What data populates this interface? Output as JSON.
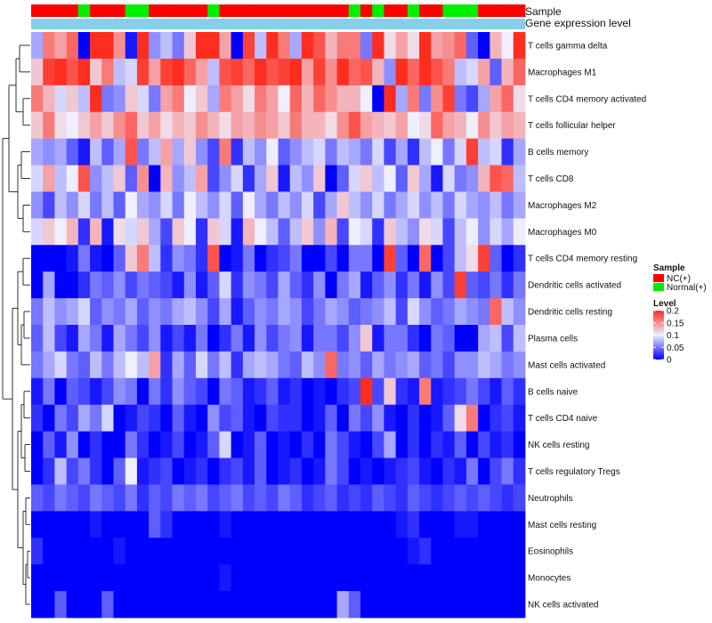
{
  "chart_data": {
    "type": "heatmap",
    "title": "",
    "annotations": {
      "sample_label": "Sample",
      "expression_label": "Gene expression level",
      "sample_groups": [
        "NC(+)",
        "NC(+)",
        "NC(+)",
        "NC(+)",
        "Normal(+)",
        "NC(+)",
        "NC(+)",
        "NC(+)",
        "Normal(+)",
        "Normal(+)",
        "NC(+)",
        "NC(+)",
        "NC(+)",
        "NC(+)",
        "NC(+)",
        "Normal(+)",
        "NC(+)",
        "NC(+)",
        "NC(+)",
        "NC(+)",
        "NC(+)",
        "NC(+)",
        "NC(+)",
        "NC(+)",
        "NC(+)",
        "NC(+)",
        "NC(+)",
        "Normal(+)",
        "NC(+)",
        "Normal(+)",
        "NC(+)",
        "NC(+)",
        "Normal(+)",
        "NC(+)",
        "NC(+)",
        "Normal(+)",
        "Normal(+)",
        "Normal(+)",
        "NC(+)",
        "NC(+)",
        "NC(+)",
        "NC(+)"
      ]
    },
    "rows": [
      "T cells gamma delta",
      "Macrophages M1",
      "T cells CD4 memory activated",
      "T cells follicular helper",
      "B cells memory",
      "T cells CD8",
      "Macrophages M2",
      "Macrophages M0",
      "T cells CD4 memory resting",
      "Dendritic cells activated",
      "Dendritic cells resting",
      "Plasma cells",
      "Mast cells activated",
      "B cells naive",
      "T cells CD4 naive",
      "NK cells resting",
      "T cells regulatory  Tregs",
      "Neutrophils",
      "Mast cells resting",
      "Eosinophils",
      "Monocytes",
      "NK cells activated"
    ],
    "values": [
      [
        0.07,
        0.16,
        0.14,
        0.17,
        0.0,
        0.2,
        0.2,
        0.15,
        0.01,
        0.2,
        0.06,
        0.08,
        0.05,
        0.12,
        0.2,
        0.2,
        0.14,
        0.0,
        0.19,
        0.08,
        0.2,
        0.16,
        0.07,
        0.2,
        0.18,
        0.13,
        0.16,
        0.16,
        0.05,
        0.2,
        0.11,
        0.14,
        0.11,
        0.2,
        0.14,
        0.15,
        0.17,
        0.04,
        0.0,
        0.13,
        0.1,
        0.2
      ],
      [
        0.12,
        0.19,
        0.2,
        0.18,
        0.2,
        0.12,
        0.16,
        0.08,
        0.09,
        0.19,
        0.14,
        0.19,
        0.2,
        0.17,
        0.14,
        0.08,
        0.18,
        0.19,
        0.17,
        0.2,
        0.18,
        0.19,
        0.2,
        0.14,
        0.19,
        0.15,
        0.2,
        0.17,
        0.18,
        0.13,
        0.06,
        0.2,
        0.17,
        0.2,
        0.18,
        0.16,
        0.08,
        0.09,
        0.14,
        0.04,
        0.13,
        0.17
      ],
      [
        0.16,
        0.13,
        0.09,
        0.12,
        0.08,
        0.2,
        0.05,
        0.06,
        0.12,
        0.09,
        0.05,
        0.14,
        0.16,
        0.1,
        0.12,
        0.07,
        0.16,
        0.14,
        0.11,
        0.16,
        0.14,
        0.1,
        0.17,
        0.13,
        0.17,
        0.15,
        0.13,
        0.13,
        0.1,
        0.0,
        0.2,
        0.07,
        0.16,
        0.05,
        0.15,
        0.19,
        0.05,
        0.03,
        0.07,
        0.14,
        0.17,
        0.11
      ],
      [
        0.12,
        0.16,
        0.11,
        0.1,
        0.12,
        0.14,
        0.12,
        0.15,
        0.17,
        0.12,
        0.14,
        0.11,
        0.13,
        0.12,
        0.15,
        0.13,
        0.11,
        0.14,
        0.13,
        0.15,
        0.14,
        0.12,
        0.16,
        0.13,
        0.13,
        0.11,
        0.15,
        0.18,
        0.14,
        0.13,
        0.12,
        0.14,
        0.1,
        0.11,
        0.17,
        0.14,
        0.13,
        0.1,
        0.15,
        0.12,
        0.14,
        0.13
      ],
      [
        0.07,
        0.06,
        0.07,
        0.04,
        0.01,
        0.08,
        0.04,
        0.07,
        0.18,
        0.05,
        0.08,
        0.14,
        0.07,
        0.12,
        0.06,
        0.03,
        0.16,
        0.02,
        0.08,
        0.06,
        0.1,
        0.04,
        0.06,
        0.08,
        0.09,
        0.05,
        0.08,
        0.07,
        0.05,
        0.09,
        0.03,
        0.07,
        0.02,
        0.08,
        0.1,
        0.05,
        0.09,
        0.19,
        0.08,
        0.09,
        0.02,
        0.07
      ],
      [
        0.09,
        0.14,
        0.08,
        0.1,
        0.18,
        0.06,
        0.08,
        0.12,
        0.04,
        0.15,
        0.0,
        0.13,
        0.06,
        0.08,
        0.14,
        0.03,
        0.06,
        0.09,
        0.02,
        0.07,
        0.12,
        0.01,
        0.08,
        0.06,
        0.12,
        0.0,
        0.04,
        0.09,
        0.12,
        0.08,
        0.1,
        0.04,
        0.12,
        0.07,
        0.01,
        0.09,
        0.05,
        0.06,
        0.13,
        0.18,
        0.17,
        0.08
      ],
      [
        0.06,
        0.03,
        0.08,
        0.06,
        0.09,
        0.05,
        0.08,
        0.04,
        0.1,
        0.07,
        0.06,
        0.09,
        0.05,
        0.1,
        0.08,
        0.06,
        0.09,
        0.04,
        0.1,
        0.07,
        0.05,
        0.08,
        0.06,
        0.09,
        0.03,
        0.07,
        0.12,
        0.08,
        0.06,
        0.09,
        0.05,
        0.07,
        0.09,
        0.06,
        0.08,
        0.05,
        0.09,
        0.07,
        0.06,
        0.08,
        0.05,
        0.07
      ],
      [
        0.09,
        0.12,
        0.1,
        0.13,
        0.02,
        0.13,
        0.01,
        0.11,
        0.09,
        0.12,
        0.07,
        0.03,
        0.12,
        0.1,
        0.02,
        0.12,
        0.09,
        0.01,
        0.13,
        0.1,
        0.08,
        0.04,
        0.08,
        0.12,
        0.06,
        0.13,
        0.03,
        0.1,
        0.09,
        0.02,
        0.12,
        0.08,
        0.06,
        0.11,
        0.09,
        0.03,
        0.08,
        0.1,
        0.06,
        0.09,
        0.07,
        0.1
      ],
      [
        0.0,
        0.0,
        0.0,
        0.01,
        0.05,
        0.01,
        0.0,
        0.04,
        0.12,
        0.16,
        0.08,
        0.02,
        0.06,
        0.05,
        0.02,
        0.18,
        0.0,
        0.01,
        0.05,
        0.0,
        0.02,
        0.03,
        0.05,
        0.0,
        0.0,
        0.03,
        0.0,
        0.05,
        0.05,
        0.0,
        0.19,
        0.04,
        0.0,
        0.17,
        0.0,
        0.03,
        0.08,
        0.11,
        0.19,
        0.04,
        0.0,
        0.02
      ],
      [
        0.0,
        0.07,
        0.0,
        0.0,
        0.02,
        0.05,
        0.04,
        0.06,
        0.03,
        0.05,
        0.04,
        0.03,
        0.01,
        0.06,
        0.01,
        0.04,
        0.09,
        0.02,
        0.06,
        0.05,
        0.03,
        0.07,
        0.04,
        0.02,
        0.06,
        0.0,
        0.05,
        0.07,
        0.01,
        0.04,
        0.06,
        0.02,
        0.05,
        0.01,
        0.06,
        0.03,
        0.19,
        0.04,
        0.03,
        0.05,
        0.02,
        0.05
      ],
      [
        0.05,
        0.08,
        0.06,
        0.07,
        0.09,
        0.04,
        0.06,
        0.05,
        0.07,
        0.04,
        0.06,
        0.05,
        0.07,
        0.08,
        0.06,
        0.03,
        0.07,
        0.01,
        0.04,
        0.06,
        0.05,
        0.07,
        0.06,
        0.03,
        0.05,
        0.07,
        0.06,
        0.04,
        0.05,
        0.06,
        0.08,
        0.03,
        0.09,
        0.06,
        0.04,
        0.05,
        0.07,
        0.06,
        0.05,
        0.17,
        0.08,
        0.06
      ],
      [
        0.04,
        0.08,
        0.03,
        0.01,
        0.07,
        0.05,
        0.01,
        0.07,
        0.05,
        0.03,
        0.06,
        0.01,
        0.03,
        0.01,
        0.05,
        0.0,
        0.02,
        0.05,
        0.01,
        0.06,
        0.03,
        0.05,
        0.06,
        0.01,
        0.05,
        0.05,
        0.03,
        0.06,
        0.12,
        0.01,
        0.05,
        0.05,
        0.02,
        0.0,
        0.05,
        0.04,
        0.0,
        0.0,
        0.07,
        0.08,
        0.03,
        0.08
      ],
      [
        0.05,
        0.07,
        0.09,
        0.05,
        0.04,
        0.08,
        0.05,
        0.08,
        0.1,
        0.08,
        0.14,
        0.02,
        0.07,
        0.04,
        0.09,
        0.05,
        0.08,
        0.02,
        0.07,
        0.08,
        0.07,
        0.05,
        0.04,
        0.08,
        0.06,
        0.17,
        0.05,
        0.06,
        0.04,
        0.07,
        0.05,
        0.06,
        0.07,
        0.04,
        0.05,
        0.03,
        0.06,
        0.06,
        0.08,
        0.07,
        0.05,
        0.06
      ],
      [
        0.01,
        0.05,
        0.0,
        0.04,
        0.03,
        0.01,
        0.03,
        0.06,
        0.05,
        0.0,
        0.05,
        0.02,
        0.06,
        0.04,
        0.03,
        0.0,
        0.05,
        0.04,
        0.01,
        0.02,
        0.04,
        0.01,
        0.02,
        0.0,
        0.01,
        0.0,
        0.02,
        0.03,
        0.2,
        0.03,
        0.12,
        0.02,
        0.01,
        0.16,
        0.01,
        0.02,
        0.03,
        0.05,
        0.03,
        0.01,
        0.04,
        0.02
      ],
      [
        0.02,
        0.0,
        0.05,
        0.03,
        0.07,
        0.05,
        0.09,
        0.0,
        0.01,
        0.03,
        0.02,
        0.0,
        0.04,
        0.01,
        0.0,
        0.06,
        0.03,
        0.04,
        0.01,
        0.0,
        0.03,
        0.02,
        0.02,
        0.0,
        0.01,
        0.04,
        0.0,
        0.05,
        0.03,
        0.06,
        0.01,
        0.0,
        0.02,
        0.0,
        0.01,
        0.04,
        0.11,
        0.16,
        0.0,
        0.02,
        0.03,
        0.01
      ],
      [
        0.0,
        0.04,
        0.01,
        0.06,
        0.0,
        0.02,
        0.0,
        0.0,
        0.05,
        0.02,
        0.0,
        0.01,
        0.03,
        0.0,
        0.01,
        0.04,
        0.09,
        0.0,
        0.01,
        0.04,
        0.0,
        0.01,
        0.0,
        0.02,
        0.0,
        0.05,
        0.03,
        0.01,
        0.0,
        0.03,
        0.07,
        0.0,
        0.02,
        0.0,
        0.02,
        0.01,
        0.04,
        0.0,
        0.03,
        0.01,
        0.02,
        0.0
      ],
      [
        0.0,
        0.02,
        0.08,
        0.03,
        0.05,
        0.02,
        0.0,
        0.04,
        0.1,
        0.01,
        0.02,
        0.03,
        0.0,
        0.01,
        0.02,
        0.0,
        0.02,
        0.03,
        0.01,
        0.04,
        0.0,
        0.01,
        0.02,
        0.0,
        0.01,
        0.05,
        0.03,
        0.0,
        0.01,
        0.0,
        0.01,
        0.02,
        0.03,
        0.01,
        0.0,
        0.02,
        0.01,
        0.05,
        0.0,
        0.03,
        0.05,
        0.02
      ],
      [
        0.04,
        0.03,
        0.05,
        0.04,
        0.03,
        0.05,
        0.04,
        0.03,
        0.05,
        0.02,
        0.04,
        0.03,
        0.05,
        0.04,
        0.05,
        0.03,
        0.04,
        0.05,
        0.03,
        0.04,
        0.03,
        0.05,
        0.04,
        0.02,
        0.03,
        0.04,
        0.02,
        0.03,
        0.02,
        0.04,
        0.03,
        0.02,
        0.04,
        0.03,
        0.02,
        0.03,
        0.04,
        0.03,
        0.04,
        0.03,
        0.02,
        0.03
      ],
      [
        0.0,
        0.0,
        0.0,
        0.0,
        0.0,
        0.01,
        0.0,
        0.0,
        0.0,
        0.0,
        0.04,
        0.02,
        0.0,
        0.0,
        0.0,
        0.0,
        0.01,
        0.0,
        0.0,
        0.0,
        0.0,
        0.0,
        0.0,
        0.0,
        0.0,
        0.0,
        0.0,
        0.0,
        0.0,
        0.0,
        0.0,
        0.01,
        0.02,
        0.0,
        0.0,
        0.0,
        0.01,
        0.01,
        0.0,
        0.0,
        0.0,
        0.0
      ],
      [
        0.02,
        0.0,
        0.0,
        0.0,
        0.0,
        0.0,
        0.0,
        0.01,
        0.0,
        0.0,
        0.0,
        0.0,
        0.0,
        0.0,
        0.0,
        0.0,
        0.0,
        0.0,
        0.0,
        0.0,
        0.0,
        0.0,
        0.0,
        0.0,
        0.0,
        0.0,
        0.0,
        0.0,
        0.0,
        0.0,
        0.0,
        0.0,
        0.01,
        0.02,
        0.0,
        0.0,
        0.0,
        0.0,
        0.0,
        0.0,
        0.0,
        0.0
      ],
      [
        0.0,
        0.0,
        0.0,
        0.0,
        0.0,
        0.0,
        0.0,
        0.0,
        0.0,
        0.0,
        0.0,
        0.0,
        0.0,
        0.0,
        0.0,
        0.0,
        0.01,
        0.0,
        0.0,
        0.0,
        0.0,
        0.0,
        0.0,
        0.0,
        0.0,
        0.0,
        0.0,
        0.0,
        0.0,
        0.0,
        0.0,
        0.0,
        0.0,
        0.0,
        0.0,
        0.0,
        0.0,
        0.0,
        0.0,
        0.0,
        0.0,
        0.0
      ],
      [
        0.0,
        0.0,
        0.04,
        0.0,
        0.0,
        0.0,
        0.04,
        0.0,
        0.0,
        0.0,
        0.0,
        0.0,
        0.0,
        0.0,
        0.0,
        0.0,
        0.0,
        0.0,
        0.0,
        0.0,
        0.0,
        0.0,
        0.0,
        0.0,
        0.0,
        0.0,
        0.07,
        0.04,
        0.0,
        0.0,
        0.0,
        0.0,
        0.0,
        0.0,
        0.0,
        0.0,
        0.0,
        0.0,
        0.0,
        0.0,
        0.0,
        0.0
      ]
    ],
    "color_scale": {
      "domain": [
        0,
        0.1,
        0.2
      ],
      "colors": [
        "#0000ff",
        "#eeeeff",
        "#ff2d1f"
      ]
    },
    "legend": {
      "position": "right",
      "sample_title": "Sample",
      "sample_items": [
        {
          "label": "NC(+)",
          "color": "#ff0000"
        },
        {
          "label": "Normal(+)",
          "color": "#00ee00"
        }
      ],
      "level_title": "Level",
      "level_ticks": [
        "0.2",
        "0.15",
        "0.1",
        "0.05",
        "0"
      ],
      "level_tick_values": [
        0.2,
        0.15,
        0.1,
        0.05,
        0
      ]
    },
    "expression_bar_color": "#87ceeb"
  }
}
